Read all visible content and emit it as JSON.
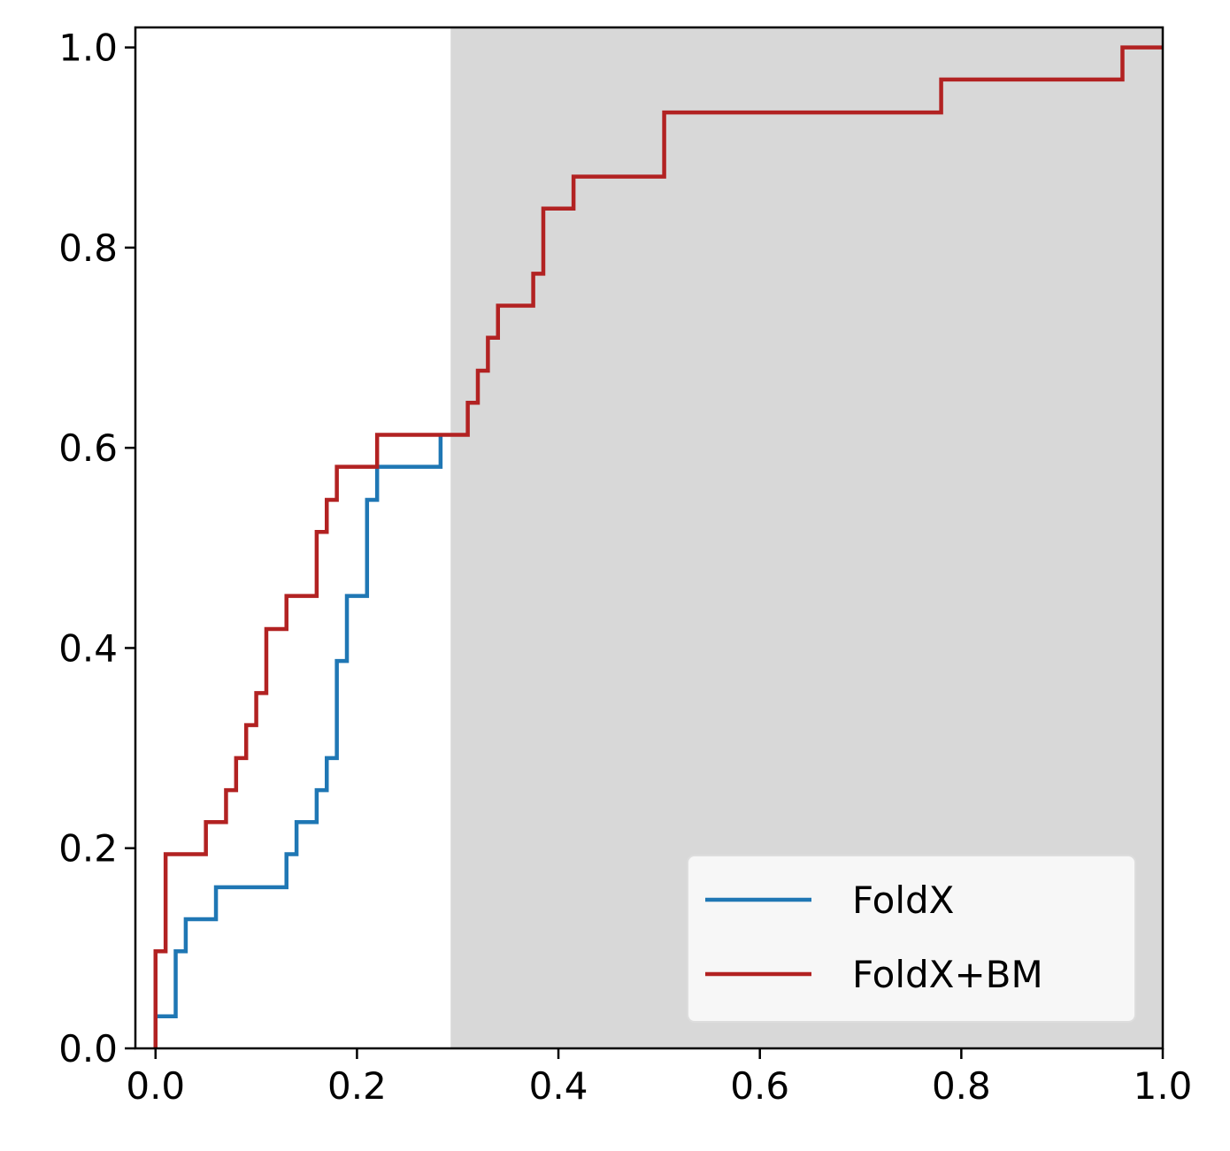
{
  "chart_data": {
    "type": "line",
    "step": "post",
    "xlim": [
      -0.02,
      1.0
    ],
    "ylim": [
      0.0,
      1.02
    ],
    "xticks": [
      "0.0",
      "0.2",
      "0.4",
      "0.6",
      "0.8",
      "1.0"
    ],
    "yticks": [
      "0.0",
      "0.2",
      "0.4",
      "0.6",
      "0.8",
      "1.0"
    ],
    "grid": false,
    "shaded_region": {
      "x_from": 0.293,
      "x_to": 1.0,
      "color": "#d8d8d8"
    },
    "legend": {
      "placement": "bottom-right"
    },
    "series": [
      {
        "name": "FoldX",
        "color": "#1f77b4",
        "x": [
          0.0,
          0.0,
          0.02,
          0.03,
          0.06,
          0.13,
          0.14,
          0.16,
          0.17,
          0.18,
          0.19,
          0.21,
          0.22,
          0.283
        ],
        "y": [
          0.0,
          0.032,
          0.097,
          0.129,
          0.161,
          0.194,
          0.226,
          0.258,
          0.29,
          0.387,
          0.452,
          0.548,
          0.581,
          0.613
        ]
      },
      {
        "name": "FoldX+BM",
        "color": "#b22222",
        "x": [
          0.0,
          0.0,
          0.01,
          0.05,
          0.07,
          0.08,
          0.09,
          0.1,
          0.11,
          0.13,
          0.16,
          0.17,
          0.18,
          0.22,
          0.31,
          0.32,
          0.33,
          0.34,
          0.375,
          0.385,
          0.415,
          0.505,
          0.78,
          0.96,
          1.0
        ],
        "y": [
          0.0,
          0.097,
          0.194,
          0.226,
          0.258,
          0.29,
          0.323,
          0.355,
          0.419,
          0.452,
          0.516,
          0.548,
          0.581,
          0.613,
          0.645,
          0.677,
          0.71,
          0.742,
          0.774,
          0.839,
          0.871,
          0.935,
          0.968,
          1.0,
          1.0
        ]
      }
    ]
  }
}
